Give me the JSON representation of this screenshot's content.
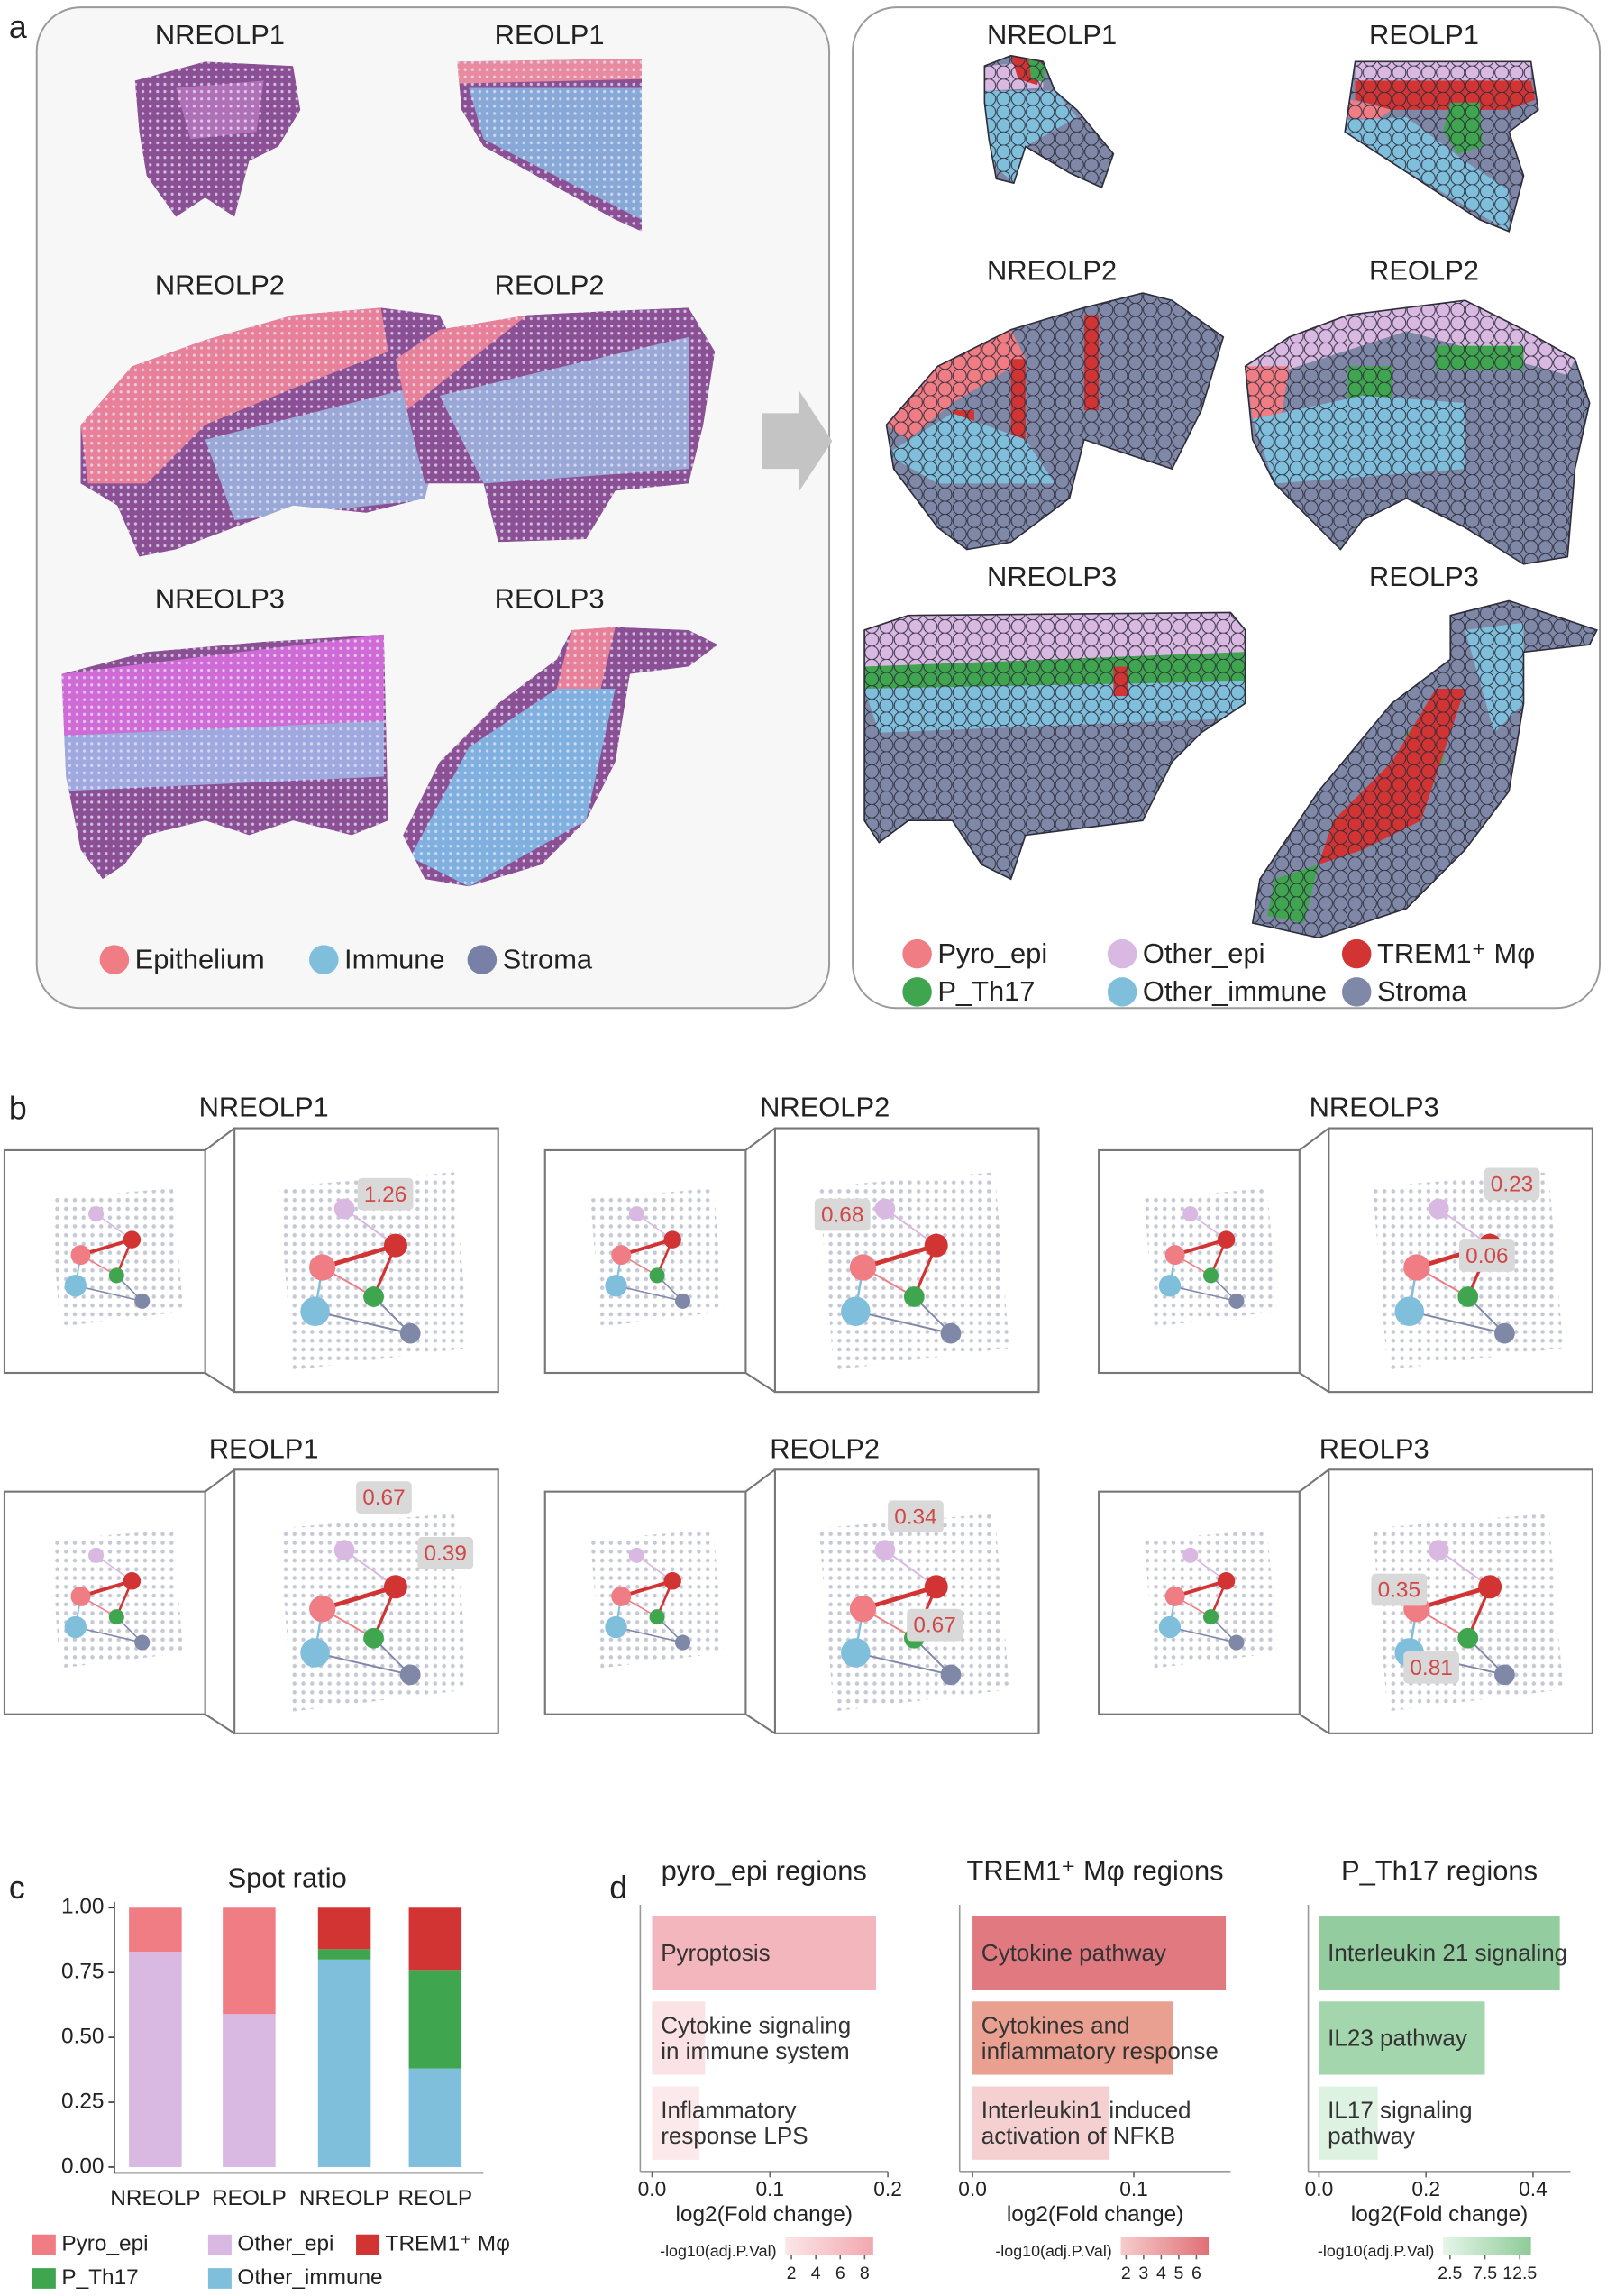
{
  "panel_a": {
    "label": "a",
    "he_titles": [
      "NREOLP1",
      "REOLP1",
      "NREOLP2",
      "REOLP2",
      "NREOLP3",
      "REOLP3"
    ],
    "he_legend": [
      "Epithelium",
      "Immune",
      "Stroma"
    ],
    "cluster_titles": [
      "NREOLP1",
      "REOLP1",
      "NREOLP2",
      "REOLP2",
      "NREOLP3",
      "REOLP3"
    ],
    "cluster_legend": [
      "Pyro_epi",
      "Other_epi",
      "TREM1⁺ Mφ",
      "P_Th17",
      "Other_immune",
      "Stroma"
    ]
  },
  "panel_b": {
    "label": "b",
    "samples": [
      {
        "title": "NREOLP1",
        "values": [
          1.26
        ]
      },
      {
        "title": "NREOLP2",
        "values": [
          0.68
        ]
      },
      {
        "title": "NREOLP3",
        "values": [
          0.23,
          0.06
        ]
      },
      {
        "title": "REOLP1",
        "values": [
          0.67,
          0.39
        ]
      },
      {
        "title": "REOLP2",
        "values": [
          0.34,
          0.67
        ]
      },
      {
        "title": "REOLP3",
        "values": [
          0.35,
          0.81
        ]
      }
    ]
  },
  "chart_data": [
    {
      "type": "stacked_bar",
      "label": "c",
      "title": "Spot ratio",
      "categories": [
        "NREOLP",
        "REOLP",
        "NREOLP",
        "REOLP"
      ],
      "series": [
        {
          "name": "Other_epi",
          "color": "#d9b8e2",
          "values": [
            0.83,
            0.59,
            null,
            null
          ]
        },
        {
          "name": "Pyro_epi",
          "color": "#f07c84",
          "values": [
            0.17,
            0.41,
            null,
            null
          ]
        },
        {
          "name": "Other_immune",
          "color": "#7fbfdc",
          "values": [
            null,
            null,
            0.8,
            0.38
          ]
        },
        {
          "name": "P_Th17",
          "color": "#3fa64f",
          "values": [
            null,
            null,
            0.04,
            0.38
          ]
        },
        {
          "name": "TREM1⁺ Mφ",
          "color": "#d23434",
          "values": [
            null,
            null,
            0.16,
            0.24
          ]
        }
      ],
      "ylim": [
        0,
        1
      ],
      "yticks": [
        {
          "value": 0,
          "label": "0.00"
        },
        0.25,
        {
          "value": 0.5,
          "label": "0.50"
        },
        0.75,
        {
          "value": 1,
          "label": "1.00"
        }
      ]
    },
    {
      "type": "barh",
      "label": "d",
      "title": "pyro_epi regions",
      "categories": [
        "Pyroptosis",
        "Cytokine signaling\nin immune system",
        "Inflammatory\nresponse LPS"
      ],
      "values": [
        0.19,
        0.045,
        0.04
      ],
      "colors": [
        "#f2b6bc",
        "#fbe2e5",
        "#fce9eb"
      ],
      "xlim": [
        -0.01,
        0.2
      ],
      "xticks": [
        {
          "value": 0,
          "label": "0.0"
        },
        0.1,
        0.2
      ],
      "xlabel": "log2(Fold change)",
      "colorbar": {
        "title": "-log10(adj.P.Val)",
        "lim": [
          1.5,
          8.7
        ],
        "ticks": [
          2,
          4,
          6,
          8
        ],
        "colors": [
          "#fbe6e8",
          "#f2a8af"
        ]
      }
    },
    {
      "type": "barh",
      "title": "TREM1⁺ Mφ regions",
      "categories": [
        "Cytokine pathway",
        "Cytokines and\ninflammatory response",
        "Interleukin1 induced\nactivation of NFKB"
      ],
      "values": [
        0.157,
        0.124,
        0.085
      ],
      "colors": [
        "#e07a80",
        "#eaa090",
        "#f4d0d1"
      ],
      "xlim": [
        -0.008,
        0.16
      ],
      "xticks": [
        {
          "value": 0,
          "label": "0.0"
        },
        0.1
      ],
      "xlabel": "log2(Fold change)",
      "colorbar": {
        "title": "-log10(adj.P.Val)",
        "lim": [
          1.7,
          6.7
        ],
        "ticks": [
          2,
          3,
          4,
          5,
          6
        ],
        "colors": [
          "#f6cccc",
          "#e07076"
        ]
      }
    },
    {
      "type": "barh",
      "title": "P_Th17 regions",
      "categories": [
        "Interleukin 21 signaling",
        "IL23 pathway",
        "IL17 signaling\npathway"
      ],
      "values": [
        0.45,
        0.31,
        0.11
      ],
      "colors": [
        "#93cc9e",
        "#a4d6ad",
        "#def2e1"
      ],
      "xlim": [
        -0.02,
        0.47
      ],
      "xticks": [
        {
          "value": 0,
          "label": "0.0"
        },
        0.2,
        0.4
      ],
      "xlabel": "log2(Fold change)",
      "colorbar": {
        "title": "-log10(adj.P.Val)",
        "lim": [
          1.5,
          14.1
        ],
        "ticks": [
          2.5,
          7.5,
          12.5
        ],
        "colors": [
          "#e6f5e8",
          "#8ecb99"
        ]
      }
    }
  ]
}
